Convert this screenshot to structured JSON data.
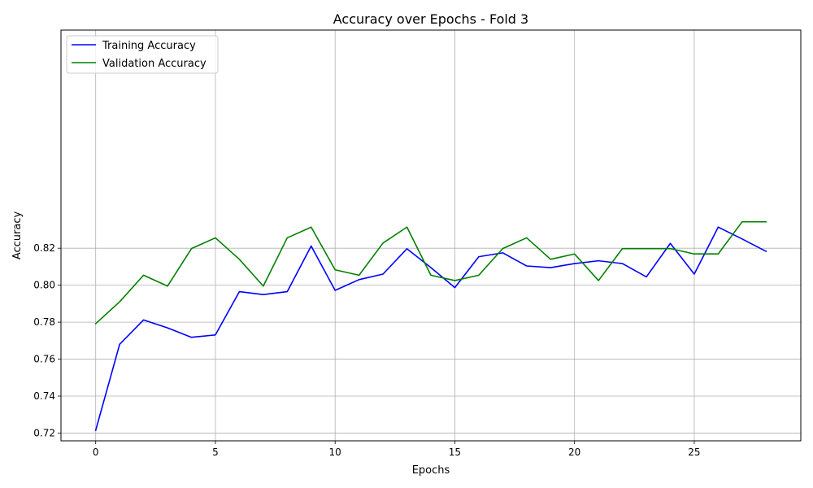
{
  "chart_data": {
    "type": "line",
    "title": "Accuracy over Epochs - Fold 3",
    "xlabel": "Epochs",
    "ylabel": "Accuracy",
    "x": [
      0,
      1,
      2,
      3,
      4,
      5,
      6,
      7,
      8,
      9,
      10,
      11,
      12,
      13,
      14,
      15,
      16,
      17,
      18,
      19,
      20,
      21,
      22,
      23,
      24,
      25,
      26,
      27,
      28
    ],
    "xlim": [
      -1.45,
      29.45
    ],
    "ylim": [
      0.7158,
      0.938
    ],
    "xticks": [
      0,
      5,
      10,
      15,
      20,
      25
    ],
    "xtick_labels": [
      "0",
      "5",
      "10",
      "15",
      "20",
      "25"
    ],
    "yticks": [
      0.72,
      0.74,
      0.76,
      0.78,
      0.8,
      0.82
    ],
    "ytick_labels": [
      "0.72",
      "0.74",
      "0.76",
      "0.78",
      "0.80",
      "0.82"
    ],
    "grid": true,
    "legend_position": "top-left",
    "series": [
      {
        "name": "Training Accuracy",
        "color": "#0000ff",
        "values": [
          0.7215,
          0.768,
          0.7812,
          0.7769,
          0.7718,
          0.7731,
          0.7965,
          0.7949,
          0.7965,
          0.8212,
          0.7972,
          0.803,
          0.806,
          0.8197,
          0.8095,
          0.7987,
          0.8154,
          0.8175,
          0.8104,
          0.8095,
          0.8117,
          0.8132,
          0.8117,
          0.8045,
          0.8226,
          0.806,
          0.8314,
          0.825,
          0.8183
        ]
      },
      {
        "name": "Validation Accuracy",
        "color": "#008000",
        "values": [
          0.7792,
          0.791,
          0.8054,
          0.7995,
          0.8198,
          0.8256,
          0.814,
          0.7995,
          0.8256,
          0.8314,
          0.8083,
          0.8054,
          0.8228,
          0.8314,
          0.8054,
          0.8025,
          0.8054,
          0.8198,
          0.8256,
          0.814,
          0.8169,
          0.8025,
          0.8198,
          0.8198,
          0.8198,
          0.8169,
          0.8169,
          0.8343,
          0.8343
        ]
      }
    ]
  }
}
